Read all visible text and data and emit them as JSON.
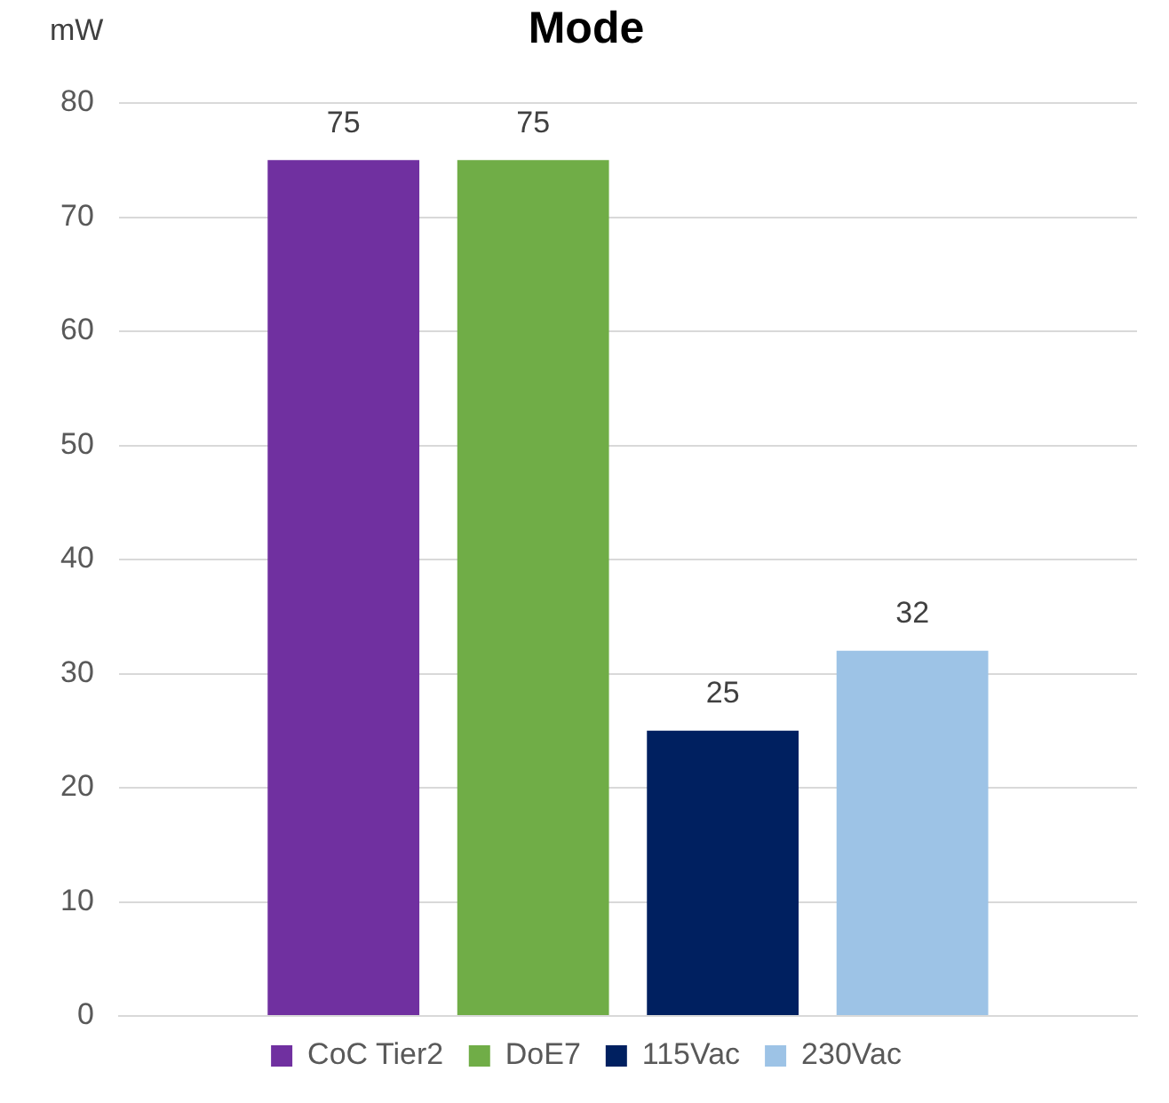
{
  "chart_data": {
    "type": "bar",
    "title": "Mode",
    "ylabel": "mW",
    "categories": [
      null
    ],
    "series": [
      {
        "name": "CoC Tier2",
        "color": "#7030a0",
        "values": [
          75
        ]
      },
      {
        "name": "DoE7",
        "color": "#70ad47",
        "values": [
          75
        ]
      },
      {
        "name": "115Vac",
        "color": "#002060",
        "values": [
          25
        ]
      },
      {
        "name": "230Vac",
        "color": "#9dc3e6",
        "values": [
          32
        ]
      }
    ],
    "ylim": [
      0,
      80
    ],
    "yticks": [
      0,
      10,
      20,
      30,
      40,
      50,
      60,
      70,
      80
    ],
    "grid": "y",
    "legend": "bottom",
    "data_labels": true
  }
}
